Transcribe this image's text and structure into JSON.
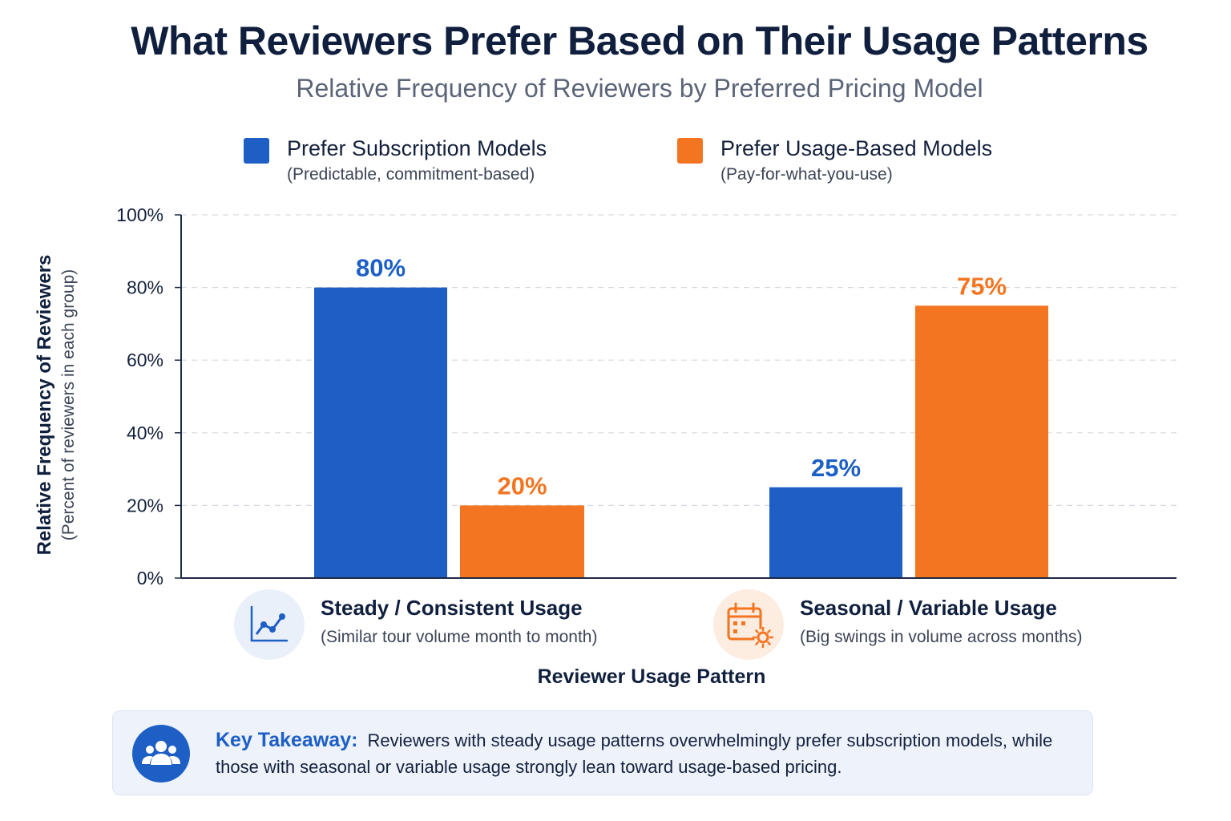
{
  "title": "What Reviewers Prefer Based on Their Usage Patterns",
  "subtitle": "Relative Frequency of Reviewers by Preferred Pricing Model",
  "legend": [
    {
      "name": "Prefer Subscription Models",
      "description": "(Predictable, commitment-based)",
      "color": "#1d5fc5"
    },
    {
      "name": "Prefer Usage-Based Models",
      "description": "(Pay-for-what-you-use)",
      "color": "#f47521"
    }
  ],
  "y_axis": {
    "label": "Relative Frequency of Reviewers",
    "sublabel": "(Percent of reviewers in each group)"
  },
  "categories": [
    {
      "name": "Steady / Consistent Usage",
      "description": "(Similar tour volume month to month)",
      "icon": "line-trend-icon"
    },
    {
      "name": "Seasonal / Variable Usage",
      "description": "(Big swings in volume across months)",
      "icon": "calendar-sun-icon"
    }
  ],
  "x_axis": {
    "label": "Reviewer Usage Pattern"
  },
  "takeaway": {
    "label": "Key Takeaway:",
    "text": "Reviewers with steady usage patterns overwhelmingly prefer subscription models, while those with seasonal or variable usage strongly lean toward usage-based pricing.",
    "icon": "people-group-icon"
  },
  "chart_data": {
    "type": "bar",
    "title": "What Reviewers Prefer Based on Their Usage Patterns",
    "subtitle": "Relative Frequency of Reviewers by Preferred Pricing Model",
    "categories": [
      "Steady / Consistent Usage",
      "Seasonal / Variable Usage"
    ],
    "series": [
      {
        "name": "Prefer Subscription Models",
        "values": [
          80,
          25
        ],
        "labels": [
          "80%",
          "25%"
        ],
        "color": "#1d5fc5"
      },
      {
        "name": "Prefer Usage-Based Models",
        "values": [
          20,
          75
        ],
        "labels": [
          "20%",
          "75%"
        ],
        "color": "#f47521"
      }
    ],
    "xlabel": "Reviewer Usage Pattern",
    "ylabel": "Relative Frequency of Reviewers",
    "ylim": [
      0,
      100
    ],
    "yticks": [
      0,
      20,
      40,
      60,
      80,
      100
    ],
    "ytick_labels": [
      "0%",
      "20%",
      "40%",
      "60%",
      "80%",
      "100%"
    ],
    "grid": true,
    "legend_position": "top"
  }
}
